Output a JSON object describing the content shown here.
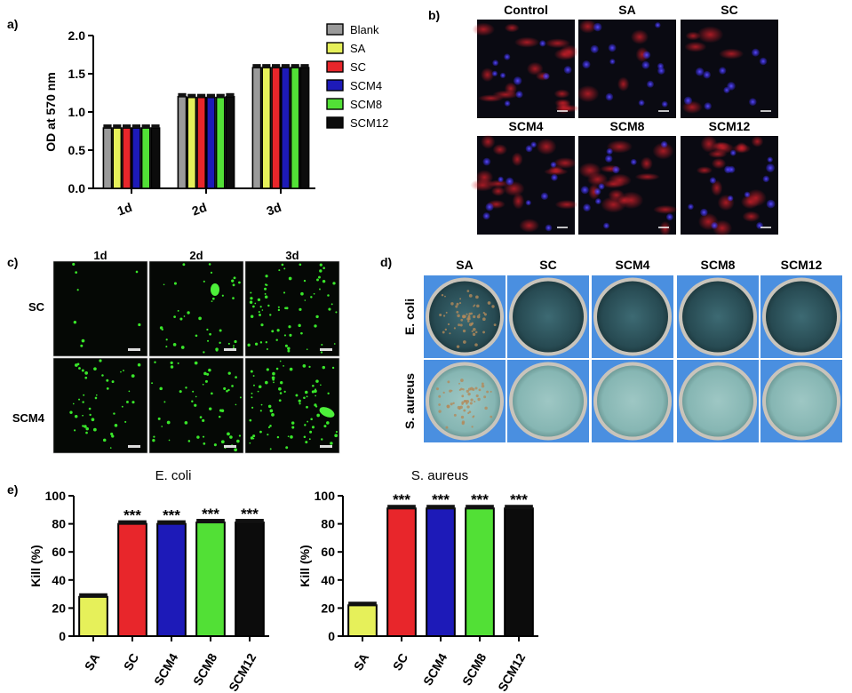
{
  "panel_labels": {
    "a": "a)",
    "b": "b)",
    "c": "c)",
    "d": "d)",
    "e": "e)"
  },
  "colors": {
    "Blank": "#9a9a9a",
    "SA": "#e6f05a",
    "SC": "#e8262b",
    "SCM4": "#1d1ab8",
    "SCM8": "#52e036",
    "SCM12": "#0c0c0c"
  },
  "chart_data": [
    {
      "panel": "a",
      "type": "bar",
      "categories": [
        "1d",
        "2d",
        "3d"
      ],
      "series": [
        {
          "name": "Blank",
          "values": [
            0.79,
            1.2,
            1.58
          ]
        },
        {
          "name": "SA",
          "values": [
            0.79,
            1.19,
            1.58
          ]
        },
        {
          "name": "SC",
          "values": [
            0.79,
            1.19,
            1.58
          ]
        },
        {
          "name": "SCM4",
          "values": [
            0.79,
            1.19,
            1.58
          ]
        },
        {
          "name": "SCM8",
          "values": [
            0.79,
            1.19,
            1.58
          ]
        },
        {
          "name": "SCM12",
          "values": [
            0.79,
            1.2,
            1.58
          ]
        }
      ],
      "ylabel": "OD at 570 nm",
      "ylim": [
        0,
        2.0
      ],
      "yticks": [
        "0.0",
        "0.5",
        "1.0",
        "1.5",
        "2.0"
      ],
      "legend_position": "right"
    },
    {
      "panel": "e1",
      "type": "bar",
      "title": "E. coli",
      "categories": [
        "SA",
        "SC",
        "SCM4",
        "SCM8",
        "SCM12"
      ],
      "values": [
        28,
        80,
        80,
        81,
        81
      ],
      "annotations": [
        "",
        "***",
        "***",
        "***",
        "***"
      ],
      "ylabel": "Kill (%)",
      "ylim": [
        0,
        100
      ],
      "yticks": [
        "0",
        "20",
        "40",
        "60",
        "80",
        "100"
      ]
    },
    {
      "panel": "e2",
      "type": "bar",
      "title": "S. aureus",
      "categories": [
        "SA",
        "SC",
        "SCM4",
        "SCM8",
        "SCM12"
      ],
      "values": [
        22,
        91,
        91,
        91,
        91
      ],
      "annotations": [
        "",
        "***",
        "***",
        "***",
        "***"
      ],
      "ylabel": "Kill (%)",
      "ylim": [
        0,
        100
      ],
      "yticks": [
        "0",
        "20",
        "40",
        "60",
        "80",
        "100"
      ]
    }
  ],
  "panel_b": {
    "columns": [
      "Control",
      "SA",
      "SC"
    ],
    "columns2": [
      "SCM4",
      "SCM8",
      "SCM12"
    ]
  },
  "panel_c": {
    "columns": [
      "1d",
      "2d",
      "3d"
    ],
    "rows": [
      "SC",
      "SCM4"
    ]
  },
  "panel_d": {
    "columns": [
      "SA",
      "SC",
      "SCM4",
      "SCM8",
      "SCM12"
    ],
    "rows": [
      "E. coli",
      "S. aureus"
    ]
  }
}
